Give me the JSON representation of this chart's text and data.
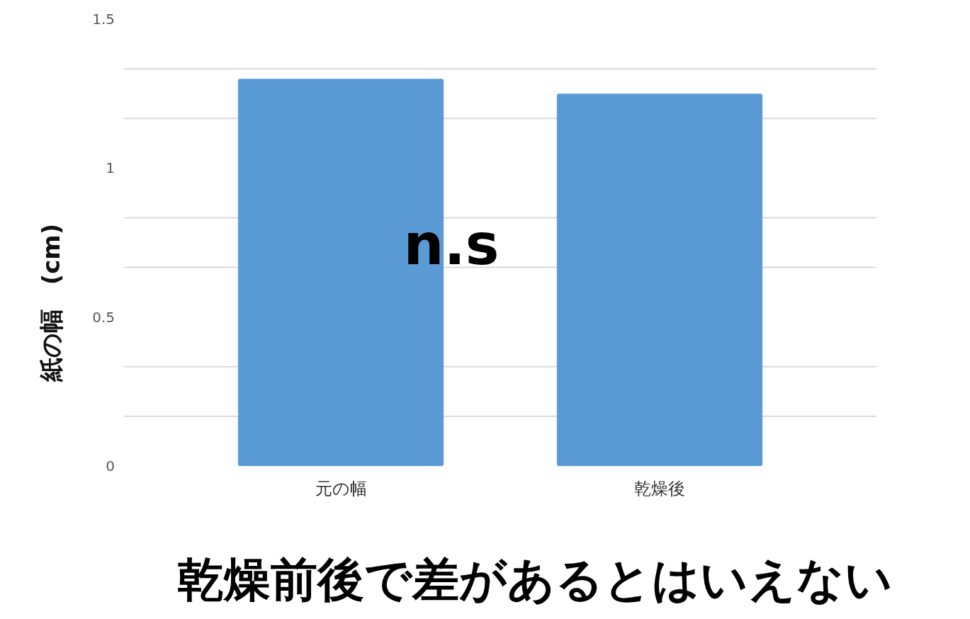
{
  "chart_data": {
    "type": "bar",
    "categories": [
      "元の幅",
      "乾燥後"
    ],
    "values": [
      1.3,
      1.25
    ],
    "color": "#5b9bd5",
    "ylabel": "紙の幅　(cm)",
    "ylim": [
      0,
      1.5
    ],
    "yticks": [
      0,
      {
        "value": 0.1667,
        "label": null
      },
      {
        "value": 0.3333,
        "label": null
      },
      0.5,
      {
        "value": 0.6667,
        "label": null
      },
      {
        "value": 0.8333,
        "label": null
      },
      1,
      {
        "value": 1.1667,
        "label": null
      },
      {
        "value": 1.3333,
        "label": null
      },
      1.5
    ],
    "grid": "y",
    "annotations": [
      "n.s",
      "乾燥前後で差があるとはいえない"
    ]
  }
}
